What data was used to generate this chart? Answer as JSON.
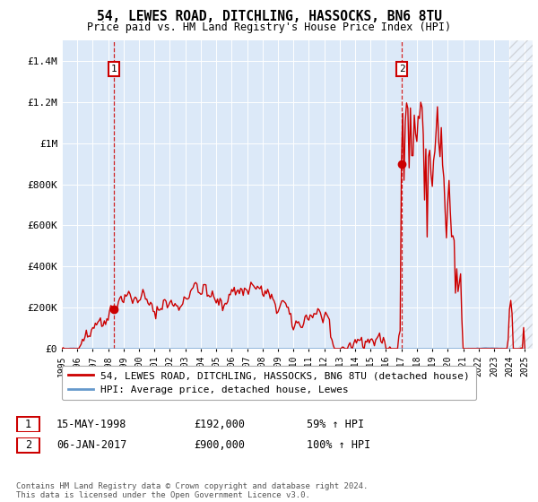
{
  "title": "54, LEWES ROAD, DITCHLING, HASSOCKS, BN6 8TU",
  "subtitle": "Price paid vs. HM Land Registry's House Price Index (HPI)",
  "bg_color": "#dce9f8",
  "outer_bg_color": "#ffffff",
  "ylim": [
    0,
    1500000
  ],
  "yticks": [
    0,
    200000,
    400000,
    600000,
    800000,
    1000000,
    1200000,
    1400000
  ],
  "ytick_labels": [
    "£0",
    "£200K",
    "£400K",
    "£600K",
    "£800K",
    "£1M",
    "£1.2M",
    "£1.4M"
  ],
  "year_start": 1995,
  "year_end": 2025,
  "sale1_year": 1998.37,
  "sale1_price": 192000,
  "sale2_year": 2017.02,
  "sale2_price": 900000,
  "red_line_color": "#cc0000",
  "blue_line_color": "#6699cc",
  "dashed_line_color": "#cc0000",
  "legend_label1": "54, LEWES ROAD, DITCHLING, HASSOCKS, BN6 8TU (detached house)",
  "legend_label2": "HPI: Average price, detached house, Lewes",
  "note1_label": "1",
  "note1_date": "15-MAY-1998",
  "note1_price": "£192,000",
  "note1_hpi": "59% ↑ HPI",
  "note2_label": "2",
  "note2_date": "06-JAN-2017",
  "note2_price": "£900,000",
  "note2_hpi": "100% ↑ HPI",
  "footer": "Contains HM Land Registry data © Crown copyright and database right 2024.\nThis data is licensed under the Open Government Licence v3.0."
}
